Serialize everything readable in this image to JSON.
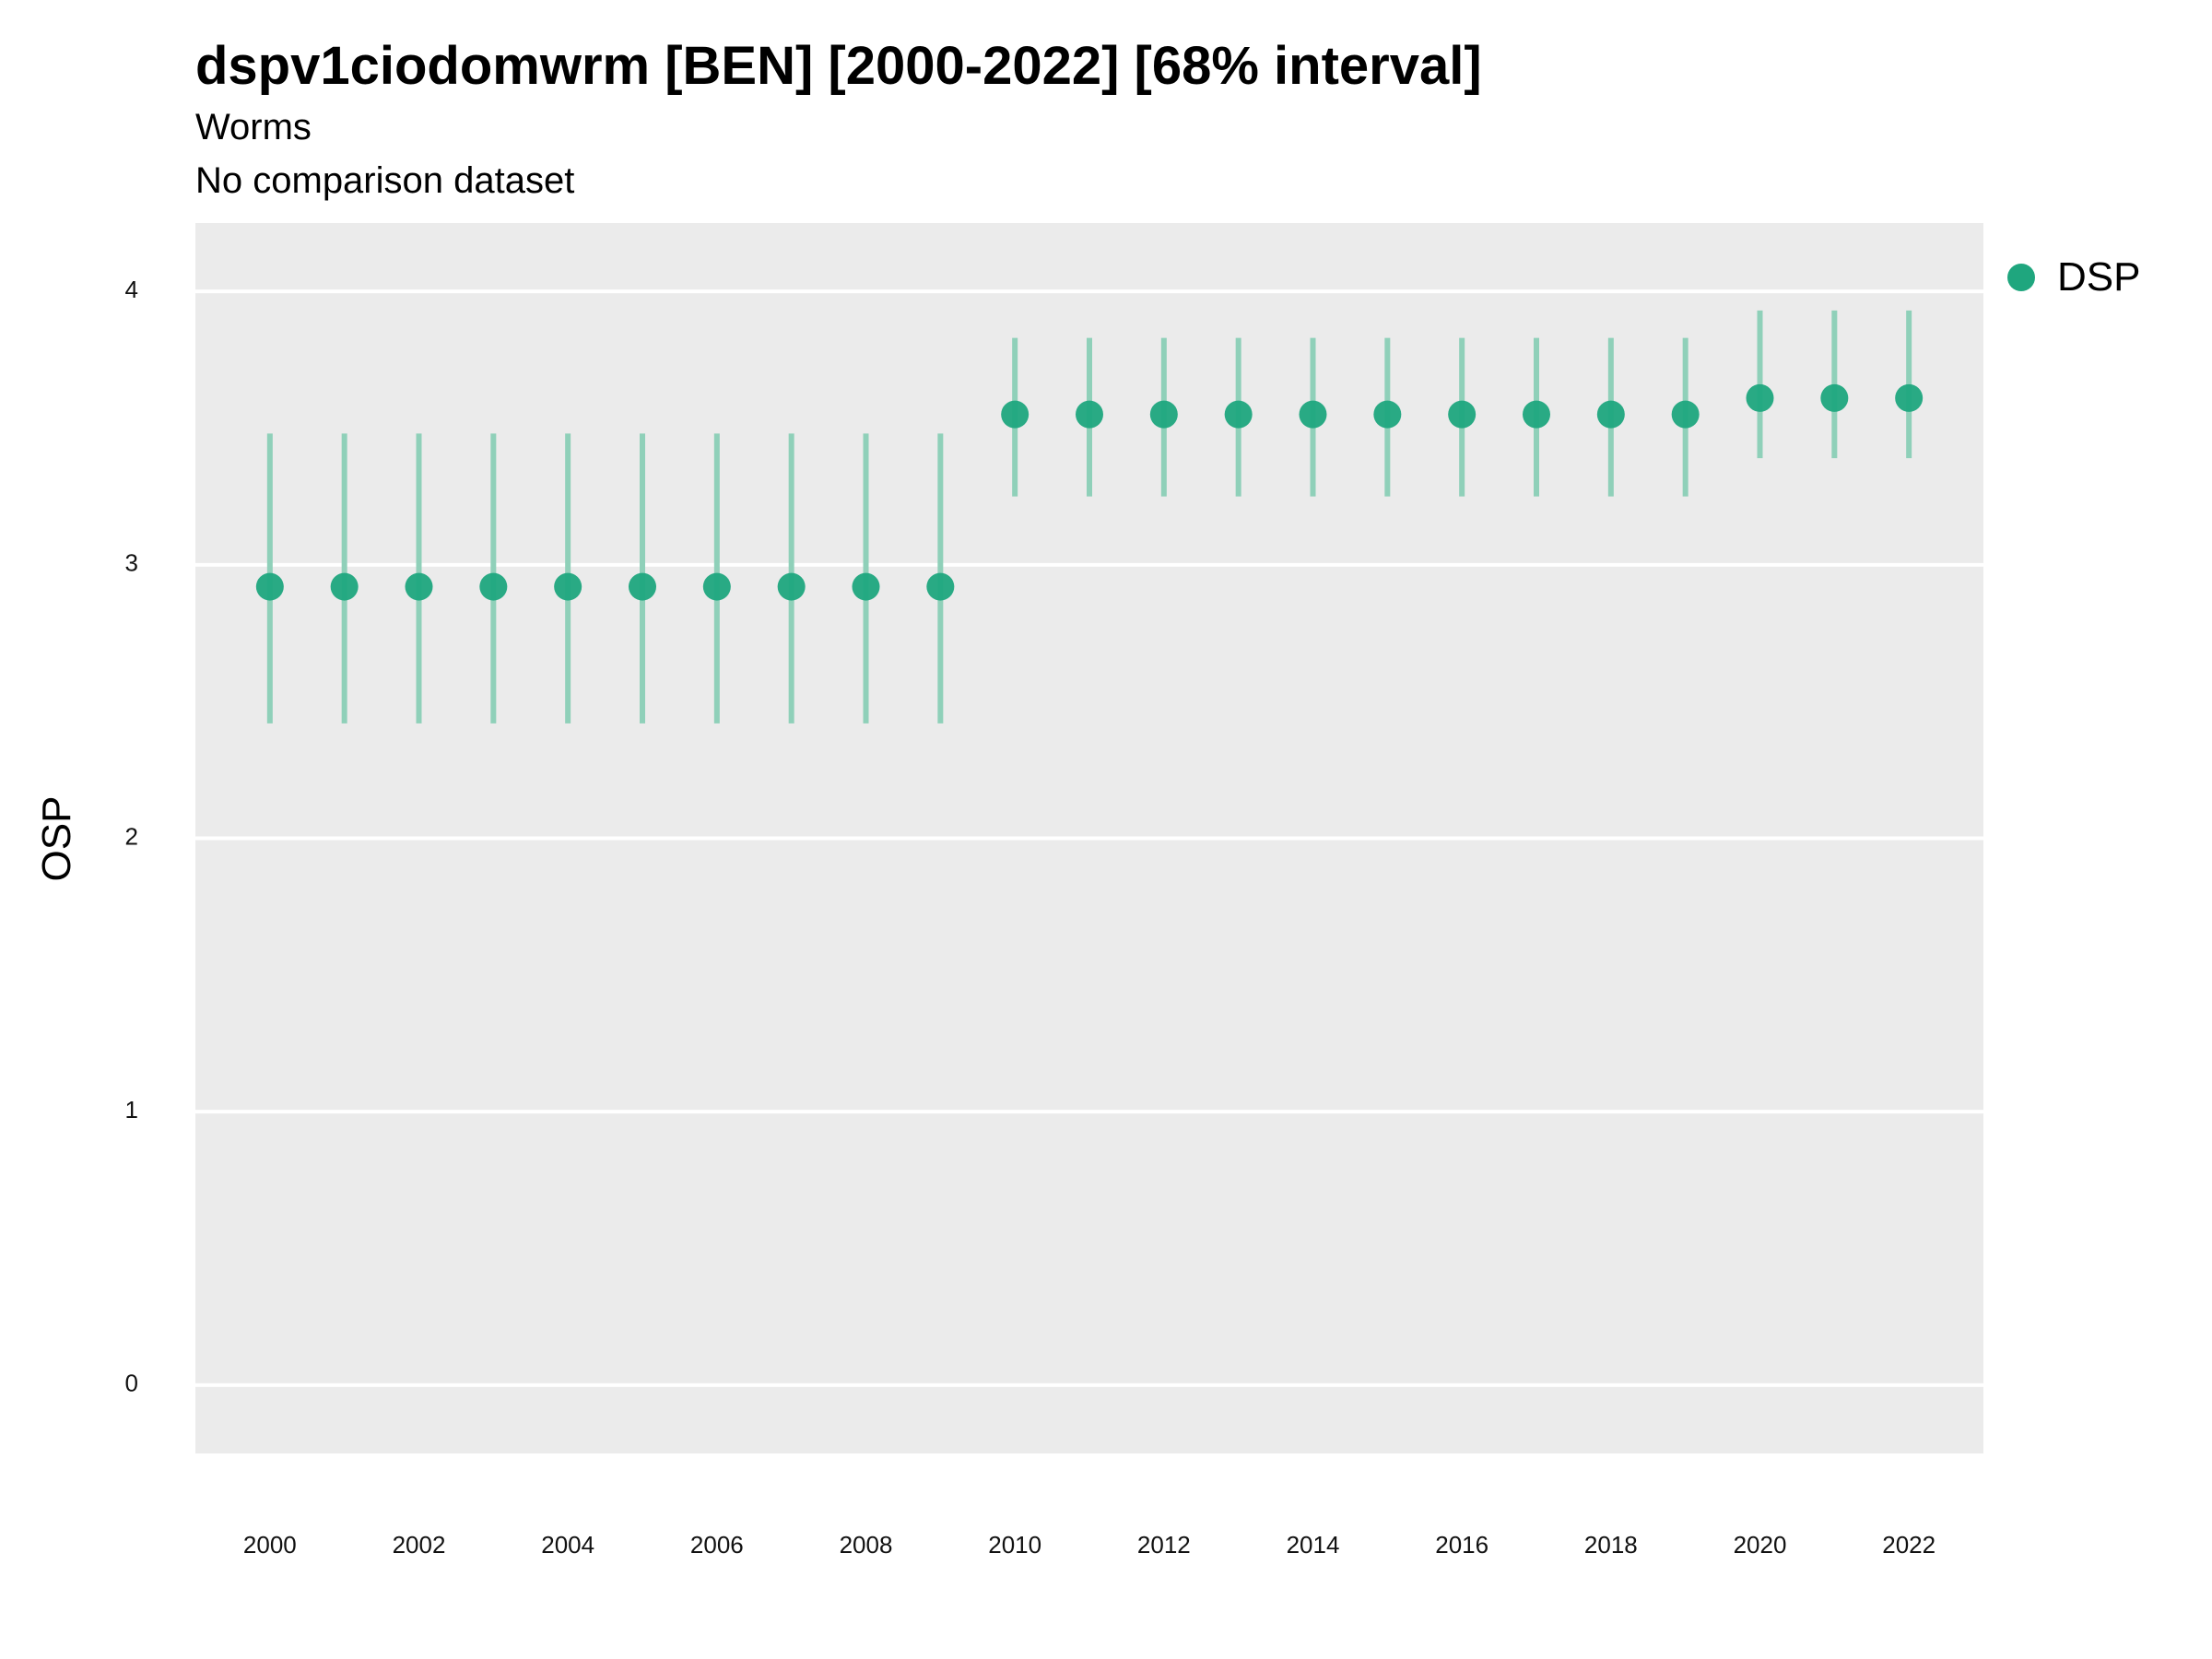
{
  "chart_data": {
    "type": "scatter",
    "title": "dspv1ciodomwrm [BEN] [2000-2022] [68% interval]",
    "subtitle": "Worms",
    "caption": "No comparison dataset",
    "ylabel": "OSP",
    "xlabel": "",
    "ylim": [
      -0.25,
      4.25
    ],
    "xlim": [
      1999,
      2023
    ],
    "yticks": [
      "0",
      "1",
      "2",
      "3",
      "4"
    ],
    "xticks": [
      "2000",
      "2002",
      "2004",
      "2006",
      "2008",
      "2010",
      "2012",
      "2014",
      "2016",
      "2018",
      "2020",
      "2022"
    ],
    "grid": true,
    "legend_position": "right",
    "series": [
      {
        "name": "DSP",
        "color": "#1FA67E",
        "interval_color": "#8FD0B9",
        "x": [
          2000,
          2001,
          2002,
          2003,
          2004,
          2005,
          2006,
          2007,
          2008,
          2009,
          2010,
          2011,
          2012,
          2013,
          2014,
          2015,
          2016,
          2017,
          2018,
          2019,
          2020,
          2021,
          2022
        ],
        "y": [
          2.92,
          2.92,
          2.92,
          2.92,
          2.92,
          2.92,
          2.92,
          2.92,
          2.92,
          2.92,
          3.55,
          3.55,
          3.55,
          3.55,
          3.55,
          3.55,
          3.55,
          3.55,
          3.55,
          3.55,
          3.61,
          3.61,
          3.61
        ],
        "lower": [
          2.42,
          2.42,
          2.42,
          2.42,
          2.42,
          2.42,
          2.42,
          2.42,
          2.42,
          2.42,
          3.25,
          3.25,
          3.25,
          3.25,
          3.25,
          3.25,
          3.25,
          3.25,
          3.25,
          3.25,
          3.39,
          3.39,
          3.39
        ],
        "upper": [
          3.48,
          3.48,
          3.48,
          3.48,
          3.48,
          3.48,
          3.48,
          3.48,
          3.48,
          3.48,
          3.83,
          3.83,
          3.83,
          3.83,
          3.83,
          3.83,
          3.83,
          3.83,
          3.83,
          3.83,
          3.93,
          3.93,
          3.93
        ]
      }
    ]
  }
}
